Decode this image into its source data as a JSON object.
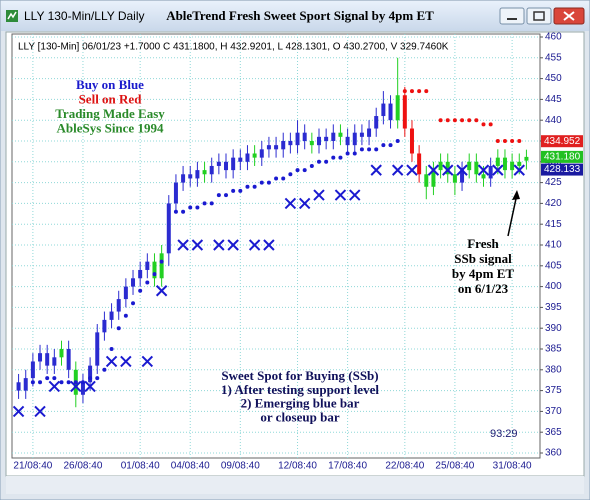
{
  "window": {
    "title": "LLY 130-Min/LLY Daily"
  },
  "chart_data": {
    "type": "candlestick",
    "title": "AbleTrend Fresh Sweet Sport Signal by 4pm ET",
    "header": "LLY [130-Min] 06/01/23  +1.7000 C 431.1800, H 432.9201, L 428.1301, O 430.2700, V 329.7460K",
    "categories": [
      null,
      null,
      "21/08:40",
      null,
      null,
      null,
      null,
      null,
      null,
      "26/08:40",
      null,
      null,
      null,
      null,
      null,
      null,
      null,
      "01/08:40",
      null,
      null,
      null,
      null,
      null,
      null,
      "04/08:40",
      null,
      null,
      null,
      null,
      null,
      null,
      "09/08:40",
      null,
      null,
      null,
      null,
      null,
      null,
      null,
      "12/08:40",
      null,
      null,
      null,
      null,
      null,
      null,
      "17/08:40",
      null,
      null,
      null,
      null,
      null,
      null,
      null,
      "22/08:40",
      null,
      null,
      null,
      null,
      null,
      null,
      "25/08:40",
      null,
      null,
      null,
      null,
      null,
      null,
      null,
      "31/08:40",
      null,
      null
    ],
    "open": [
      377,
      375,
      378,
      382,
      384,
      381,
      383,
      385,
      380,
      374,
      377,
      381,
      389,
      392,
      394,
      397,
      400,
      402,
      404,
      406,
      402,
      408,
      420,
      425,
      427,
      426,
      428,
      427,
      429,
      430,
      428,
      431,
      430,
      432,
      431,
      433,
      434,
      433,
      435,
      434,
      437,
      435,
      434,
      436,
      435,
      437,
      436,
      434,
      437,
      436,
      438,
      441,
      444,
      440,
      446,
      438,
      432,
      427,
      424,
      428,
      430,
      427,
      425,
      428,
      430,
      427,
      426,
      429,
      431,
      428,
      430,
      430.27
    ],
    "high": [
      379,
      380,
      384,
      386,
      386,
      385,
      387,
      387,
      382,
      379,
      383,
      391,
      394,
      396,
      399,
      402,
      404,
      406,
      408,
      408,
      410,
      422,
      427,
      429,
      429,
      430,
      430,
      431,
      432,
      432,
      433,
      433,
      434,
      434,
      435,
      436,
      436,
      437,
      437,
      440,
      439,
      437,
      438,
      438,
      439,
      439,
      438,
      439,
      439,
      440,
      443,
      447,
      446,
      455,
      448,
      440,
      434,
      429,
      430,
      432,
      432,
      429,
      430,
      432,
      432,
      429,
      431,
      433,
      433,
      432,
      432,
      432.9201
    ],
    "low": [
      373,
      373,
      376,
      380,
      379,
      379,
      381,
      378,
      371,
      372,
      375,
      379,
      387,
      390,
      392,
      395,
      398,
      400,
      402,
      400,
      400,
      405,
      418,
      423,
      424,
      424,
      425,
      425,
      427,
      426,
      426,
      428,
      428,
      429,
      429,
      431,
      431,
      431,
      432,
      432,
      433,
      432,
      432,
      433,
      433,
      434,
      432,
      432,
      434,
      434,
      436,
      439,
      438,
      438,
      436,
      430,
      425,
      421,
      422,
      426,
      425,
      422,
      423,
      426,
      425,
      424,
      424,
      427,
      426,
      426,
      427,
      428.1301
    ],
    "close": [
      375,
      378,
      382,
      384,
      381,
      383,
      385,
      380,
      374,
      377,
      381,
      389,
      392,
      394,
      397,
      400,
      402,
      404,
      406,
      402,
      408,
      420,
      425,
      427,
      426,
      428,
      427,
      429,
      430,
      428,
      431,
      430,
      432,
      431,
      433,
      434,
      433,
      435,
      434,
      437,
      435,
      434,
      436,
      435,
      437,
      436,
      434,
      437,
      436,
      438,
      441,
      444,
      440,
      446,
      438,
      432,
      427,
      424,
      428,
      430,
      427,
      425,
      428,
      430,
      427,
      426,
      429,
      431,
      428,
      430,
      429,
      431.18
    ],
    "palette": {
      "blue": "#2b2bd0",
      "green": "#22d022",
      "red": "#ee1111"
    },
    "candle_colors": [
      "blue",
      "blue",
      "blue",
      "blue",
      "blue",
      "blue",
      "green",
      "blue",
      "green",
      "blue",
      "blue",
      "blue",
      "blue",
      "blue",
      "blue",
      "blue",
      "blue",
      "blue",
      "blue",
      "green",
      "green",
      "blue",
      "blue",
      "blue",
      "blue",
      "blue",
      "green",
      "blue",
      "blue",
      "blue",
      "blue",
      "blue",
      "blue",
      "green",
      "blue",
      "blue",
      "blue",
      "blue",
      "blue",
      "blue",
      "blue",
      "green",
      "blue",
      "blue",
      "blue",
      "green",
      "blue",
      "blue",
      "blue",
      "blue",
      "blue",
      "blue",
      "blue",
      "green",
      "red",
      "red",
      "red",
      "green",
      "green",
      "green",
      "green",
      "green",
      "blue",
      "green",
      "green",
      "green",
      "blue",
      "green",
      "green",
      "green",
      "green",
      "green"
    ],
    "support_dots": {
      "color": "#1a1ad0",
      "values": [
        null,
        null,
        377,
        377,
        378,
        378,
        377,
        377,
        377,
        377,
        378,
        378,
        380,
        385,
        390,
        393,
        396,
        399,
        401,
        403,
        406,
        null,
        418,
        418,
        419,
        419,
        420,
        420,
        422,
        422,
        423,
        423,
        424,
        424,
        425,
        425,
        426,
        426,
        427,
        428,
        428,
        429,
        430,
        430,
        431,
        431,
        432,
        432,
        433,
        433,
        433,
        434,
        434,
        435,
        null,
        null,
        null,
        null,
        null,
        null,
        null,
        null,
        null,
        null,
        null,
        null,
        null,
        null,
        null,
        null,
        null,
        null
      ]
    },
    "resistance_dots": {
      "color": "#ee1111",
      "values": [
        null,
        null,
        null,
        null,
        null,
        null,
        null,
        null,
        null,
        null,
        null,
        null,
        null,
        null,
        null,
        null,
        null,
        null,
        null,
        null,
        null,
        null,
        null,
        null,
        null,
        null,
        null,
        null,
        null,
        null,
        null,
        null,
        null,
        null,
        null,
        null,
        null,
        null,
        null,
        null,
        null,
        null,
        null,
        null,
        null,
        null,
        null,
        null,
        null,
        null,
        null,
        null,
        null,
        null,
        447,
        447,
        447,
        447,
        null,
        440,
        440,
        440,
        440,
        440,
        440,
        439,
        439,
        435,
        435,
        435,
        435,
        null
      ]
    },
    "ssb_markers": {
      "color": "#1a1ad0",
      "values": [
        370,
        null,
        null,
        370,
        null,
        376,
        null,
        null,
        376,
        null,
        376,
        null,
        null,
        382,
        null,
        382,
        null,
        null,
        382,
        null,
        399,
        null,
        null,
        410,
        null,
        410,
        null,
        null,
        410,
        null,
        410,
        null,
        null,
        410,
        null,
        410,
        null,
        null,
        420,
        null,
        420,
        null,
        422,
        null,
        null,
        422,
        null,
        422,
        null,
        null,
        428,
        null,
        null,
        428,
        null,
        428,
        null,
        null,
        428,
        null,
        428,
        null,
        428,
        null,
        null,
        428,
        null,
        428,
        null,
        null,
        428,
        null
      ]
    },
    "ylim": [
      360,
      460
    ],
    "yticks": [
      360,
      365,
      370,
      375,
      380,
      385,
      390,
      395,
      400,
      405,
      410,
      415,
      420,
      425,
      430,
      435,
      440,
      445,
      450,
      455,
      460
    ],
    "grid": true,
    "grid_color": "#8fd8d8",
    "price_tags": [
      {
        "value": 434.952,
        "label": "434.952",
        "color": "#e02020"
      },
      {
        "value": 431.18,
        "label": "431.180",
        "color": "#22c022"
      },
      {
        "value": 428.133,
        "label": "428.133",
        "color": "#1a1aa0"
      }
    ],
    "annotations": [
      {
        "lines": [
          "Buy on Blue",
          "Sell on Red",
          "Trading Made Easy",
          "AbleSys Since 1994"
        ],
        "colors": [
          "#1a1acc",
          "#dd1111",
          "#2a8a2a",
          "#2a8a2a"
        ]
      },
      {
        "lines": [
          "Fresh",
          "SSb signal",
          "by 4pm ET",
          "on 6/1/23"
        ],
        "colors": [
          "#000000",
          "#000000",
          "#000000",
          "#000000"
        ]
      },
      {
        "lines": [
          "Sweet Spot for Buying (SSb)",
          "1) After testing support level",
          "2) Emerging blue bar",
          "or closeup bar"
        ],
        "colors": [
          "#10105a",
          "#10105a",
          "#10105a",
          "#10105a"
        ]
      }
    ],
    "timer": "93:29"
  }
}
